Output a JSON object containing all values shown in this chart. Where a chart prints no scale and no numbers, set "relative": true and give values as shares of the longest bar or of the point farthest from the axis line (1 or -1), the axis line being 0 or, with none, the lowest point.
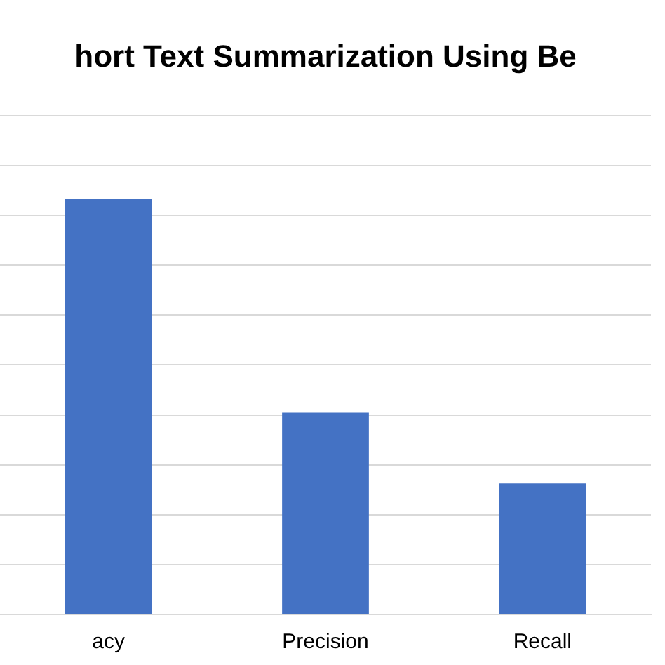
{
  "chart_data": {
    "type": "bar",
    "title": "hort Text Summarization Using Be",
    "categories": [
      "acy",
      "Precision",
      "Recall"
    ],
    "values": [
      1,
      0.485,
      0.315
    ],
    "color": "#4472c4",
    "relative": true,
    "grid": true,
    "legend": false
  }
}
